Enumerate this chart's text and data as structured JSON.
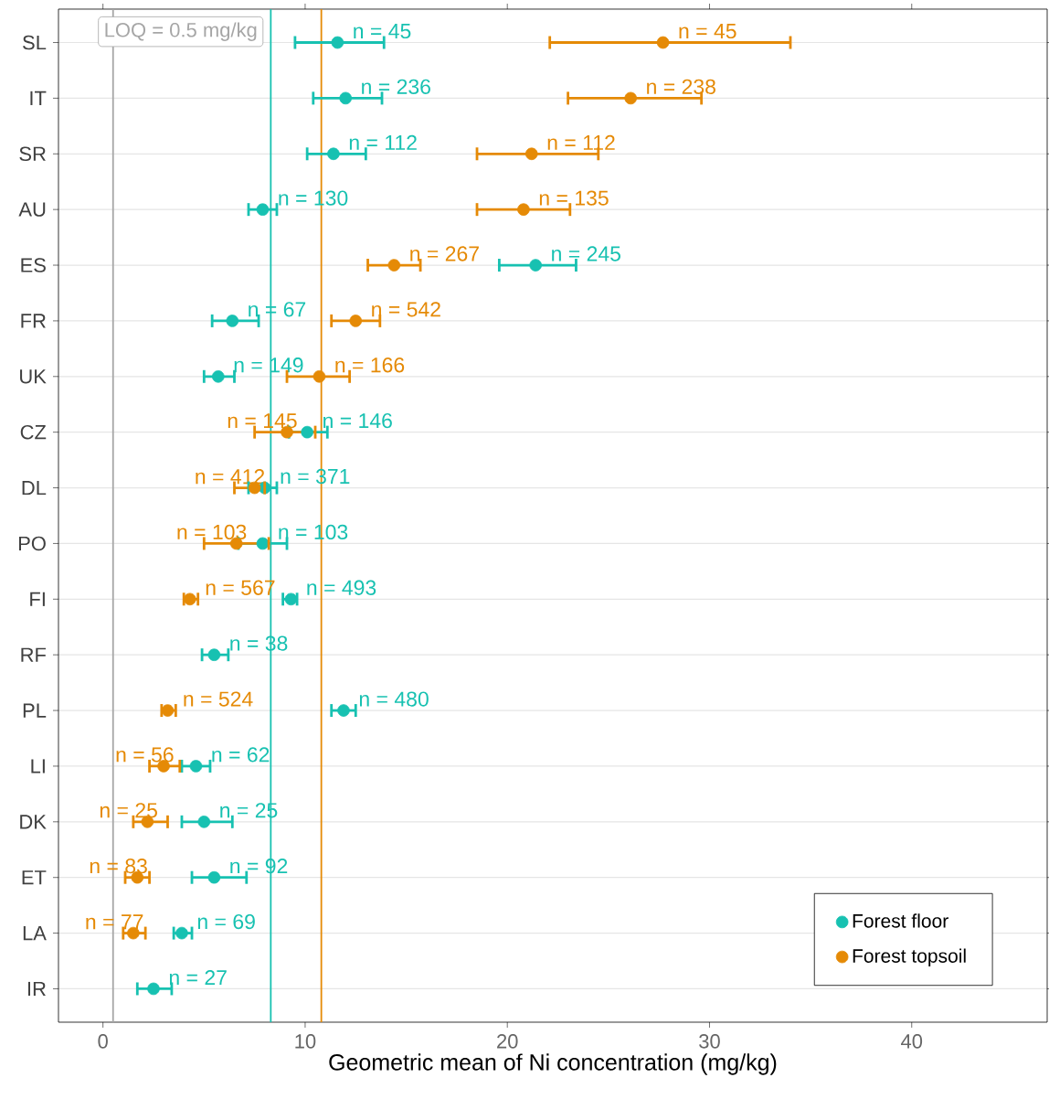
{
  "chart_data": {
    "type": "scatter",
    "orientation": "horizontal",
    "xlabel": "Geometric mean of Ni concentration (mg/kg)",
    "categories": [
      "SL",
      "IT",
      "SR",
      "AU",
      "ES",
      "FR",
      "UK",
      "CZ",
      "DL",
      "PO",
      "FI",
      "RF",
      "PL",
      "LI",
      "DK",
      "ET",
      "LA",
      "IR"
    ],
    "series": [
      {
        "name": "Forest floor",
        "color": "#17c1b1",
        "values": [
          11.6,
          12.0,
          11.4,
          7.9,
          21.4,
          6.4,
          5.7,
          10.1,
          8.0,
          7.9,
          9.3,
          5.5,
          11.9,
          4.6,
          5.0,
          5.5,
          3.9,
          2.5
        ],
        "errors": [
          [
            9.5,
            13.9
          ],
          [
            10.4,
            13.8
          ],
          [
            10.1,
            13.0
          ],
          [
            7.2,
            8.6
          ],
          [
            19.6,
            23.4
          ],
          [
            5.4,
            7.7
          ],
          [
            5.0,
            6.5
          ],
          [
            9.2,
            11.1
          ],
          [
            7.2,
            8.6
          ],
          [
            6.7,
            9.1
          ],
          [
            8.9,
            9.6
          ],
          [
            4.9,
            6.2
          ],
          [
            11.3,
            12.5
          ],
          [
            3.9,
            5.3
          ],
          [
            3.9,
            6.4
          ],
          [
            4.4,
            7.1
          ],
          [
            3.5,
            4.4
          ],
          [
            1.7,
            3.4
          ]
        ]
      },
      {
        "name": "Forest topsoil",
        "color": "#e58a06",
        "values": [
          27.7,
          26.1,
          21.2,
          20.8,
          14.4,
          12.5,
          10.7,
          9.1,
          7.5,
          6.6,
          4.3,
          null,
          3.2,
          3.0,
          2.2,
          1.7,
          1.5,
          null
        ],
        "errors": [
          [
            22.1,
            34.0
          ],
          [
            23.0,
            29.6
          ],
          [
            18.5,
            24.5
          ],
          [
            18.5,
            23.1
          ],
          [
            13.1,
            15.7
          ],
          [
            11.3,
            13.7
          ],
          [
            9.1,
            12.2
          ],
          [
            7.5,
            10.5
          ],
          [
            6.5,
            8.0
          ],
          [
            5.0,
            8.2
          ],
          [
            4.0,
            4.7
          ],
          null,
          [
            2.9,
            3.6
          ],
          [
            2.3,
            3.8
          ],
          [
            1.5,
            3.2
          ],
          [
            1.1,
            2.3
          ],
          [
            1.0,
            2.1
          ],
          null
        ]
      }
    ],
    "annotations": [
      {
        "text": "n = 45",
        "x": 11.6,
        "y": "SL"
      },
      {
        "text": "n = 236",
        "x": 12.0,
        "y": "IT"
      },
      {
        "text": "n = 112",
        "x": 11.4,
        "y": "SR"
      },
      {
        "text": "n = 130",
        "x": 7.9,
        "y": "AU"
      },
      {
        "text": "n = 245",
        "x": 21.4,
        "y": "ES"
      },
      {
        "text": "n = 67",
        "x": 6.4,
        "y": "FR"
      },
      {
        "text": "n = 149",
        "x": 5.7,
        "y": "UK"
      },
      {
        "text": "n = 146",
        "x": 10.1,
        "y": "CZ"
      },
      {
        "text": "n = 371",
        "x": 8.0,
        "y": "DL"
      },
      {
        "text": "n = 103",
        "x": 7.9,
        "y": "PO"
      },
      {
        "text": "n = 493",
        "x": 9.3,
        "y": "FI"
      },
      {
        "text": "n = 38",
        "x": 5.5,
        "y": "RF"
      },
      {
        "text": "n = 480",
        "x": 11.9,
        "y": "PL"
      },
      {
        "text": "n = 62",
        "x": 4.6,
        "y": "LI"
      },
      {
        "text": "n = 25",
        "x": 5.0,
        "y": "DK"
      },
      {
        "text": "n = 92",
        "x": 5.5,
        "y": "ET"
      },
      {
        "text": "n = 69",
        "x": 3.9,
        "y": "LA"
      },
      {
        "text": "n = 27",
        "x": 2.5,
        "y": "IR"
      },
      {
        "text": "n = 45",
        "x": 27.7,
        "y": "SL"
      },
      {
        "text": "n = 238",
        "x": 26.1,
        "y": "IT"
      },
      {
        "text": "n = 112",
        "x": 21.2,
        "y": "SR"
      },
      {
        "text": "n = 135",
        "x": 20.8,
        "y": "AU"
      },
      {
        "text": "n = 267",
        "x": 14.4,
        "y": "ES"
      },
      {
        "text": "n = 542",
        "x": 12.5,
        "y": "FR"
      },
      {
        "text": "n = 166",
        "x": 10.7,
        "y": "UK"
      },
      {
        "text": "n = 145",
        "x": 9.1,
        "y": "CZ"
      },
      {
        "text": "n = 412",
        "x": 7.5,
        "y": "DL"
      },
      {
        "text": "n = 103",
        "x": 6.6,
        "y": "PO"
      },
      {
        "text": "n = 567",
        "x": 4.3,
        "y": "FI"
      },
      {
        "text": "n = 524",
        "x": 3.2,
        "y": "PL"
      },
      {
        "text": "n = 56",
        "x": 3.0,
        "y": "LI"
      },
      {
        "text": "n = 25",
        "x": 2.2,
        "y": "DK"
      },
      {
        "text": "n = 83",
        "x": 1.7,
        "y": "ET"
      },
      {
        "text": "n = 77",
        "x": 1.5,
        "y": "LA"
      }
    ],
    "xlim": [
      -2.2,
      46.7
    ],
    "xticks": [
      0,
      10,
      20,
      30,
      40
    ],
    "ref_lines": [
      {
        "axis": "x",
        "value": 0.5,
        "label": "LOQ = 0.5 mg/kg",
        "color": "#a6a6a6"
      },
      {
        "axis": "x",
        "value": 8.3,
        "color": "#17c1b1"
      },
      {
        "axis": "x",
        "value": 10.8,
        "color": "#e58a06"
      }
    ],
    "grid": "y",
    "legend": "bottom right",
    "marker": "circle"
  }
}
